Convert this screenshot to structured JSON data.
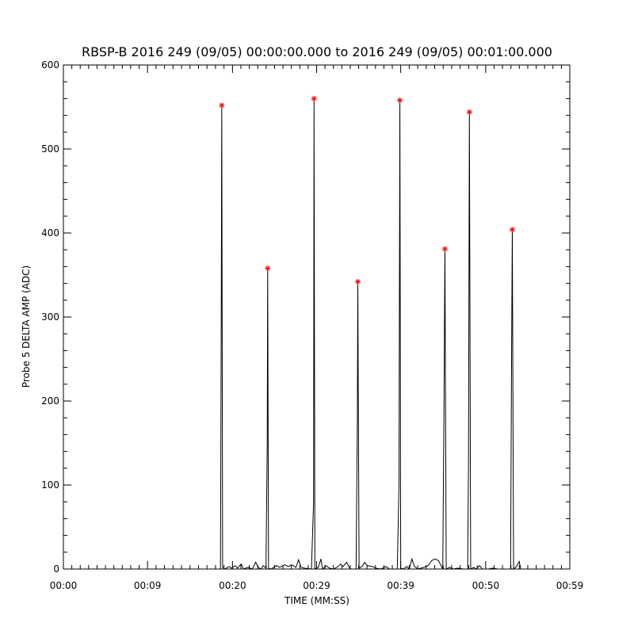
{
  "chart_data": {
    "type": "line",
    "title": "RBSP-B 2016 249 (09/05) 00:00:00.000 to 2016 249 (09/05) 00:01:00.000",
    "xlabel": "TIME (MM:SS)",
    "ylabel": "Probe 5 DELTA AMP (ADC)",
    "xlim": [
      0,
      59
    ],
    "ylim": [
      0,
      600
    ],
    "x_ticks": [
      0,
      9.8,
      19.7,
      29.5,
      39.3,
      49.2,
      59
    ],
    "x_tick_labels": [
      "00:00",
      "00:09",
      "00:20",
      "00:29",
      "00:39",
      "00:50",
      "00:59"
    ],
    "y_ticks": [
      0,
      100,
      200,
      300,
      400,
      500,
      600
    ],
    "y_tick_labels": [
      "0",
      "100",
      "200",
      "300",
      "400",
      "500",
      "600"
    ],
    "series": [
      {
        "color": "#000000",
        "points": [
          [
            0,
            0
          ],
          [
            17.8,
            0
          ],
          [
            18.3,
            0
          ],
          [
            18.4,
            330
          ],
          [
            18.45,
            552
          ],
          [
            18.55,
            2
          ],
          [
            18.8,
            0
          ],
          [
            19.3,
            3
          ],
          [
            19.6,
            1
          ],
          [
            20.0,
            4
          ],
          [
            20.3,
            1
          ],
          [
            20.7,
            6
          ],
          [
            21.0,
            0
          ],
          [
            21.5,
            2
          ],
          [
            22.0,
            0
          ],
          [
            22.4,
            8
          ],
          [
            22.7,
            2
          ],
          [
            23.0,
            0
          ],
          [
            23.3,
            4
          ],
          [
            23.6,
            1
          ],
          [
            23.75,
            150
          ],
          [
            23.8,
            358
          ],
          [
            23.9,
            1
          ],
          [
            24.2,
            0
          ],
          [
            24.8,
            4
          ],
          [
            25.2,
            2
          ],
          [
            25.8,
            5
          ],
          [
            26.2,
            3
          ],
          [
            26.6,
            5
          ],
          [
            27.1,
            2
          ],
          [
            27.4,
            11
          ],
          [
            27.7,
            2
          ],
          [
            28.1,
            1
          ],
          [
            28.9,
            0
          ],
          [
            29.15,
            80
          ],
          [
            29.2,
            560
          ],
          [
            29.3,
            0
          ],
          [
            29.7,
            2
          ],
          [
            30.0,
            12
          ],
          [
            30.2,
            0
          ],
          [
            30.6,
            4
          ],
          [
            31.0,
            1
          ],
          [
            31.5,
            0
          ],
          [
            32.0,
            3
          ],
          [
            32.3,
            6
          ],
          [
            32.6,
            3
          ],
          [
            33.0,
            8
          ],
          [
            33.3,
            2
          ],
          [
            33.5,
            0
          ],
          [
            34.1,
            0
          ],
          [
            34.25,
            180
          ],
          [
            34.3,
            342
          ],
          [
            34.45,
            1
          ],
          [
            34.8,
            3
          ],
          [
            35.1,
            8
          ],
          [
            35.4,
            4
          ],
          [
            36.0,
            3
          ],
          [
            36.4,
            1
          ],
          [
            37.0,
            0
          ],
          [
            37.6,
            3
          ],
          [
            38.0,
            0
          ],
          [
            38.9,
            0
          ],
          [
            39.1,
            100
          ],
          [
            39.2,
            558
          ],
          [
            39.3,
            1
          ],
          [
            39.6,
            0
          ],
          [
            40.0,
            3
          ],
          [
            40.3,
            0
          ],
          [
            40.6,
            12
          ],
          [
            40.9,
            3
          ],
          [
            41.3,
            0
          ],
          [
            42.0,
            2
          ],
          [
            42.5,
            4
          ],
          [
            42.9,
            10
          ],
          [
            43.3,
            12
          ],
          [
            43.7,
            10
          ],
          [
            44.0,
            4
          ],
          [
            44.2,
            0
          ],
          [
            44.35,
            205
          ],
          [
            44.45,
            381
          ],
          [
            44.6,
            0
          ],
          [
            45.0,
            2
          ],
          [
            45.4,
            0
          ],
          [
            46.0,
            1
          ],
          [
            46.6,
            0
          ],
          [
            47.1,
            0
          ],
          [
            47.2,
            130
          ],
          [
            47.3,
            544
          ],
          [
            47.45,
            0
          ],
          [
            47.8,
            2
          ],
          [
            48.1,
            0
          ],
          [
            48.5,
            4
          ],
          [
            48.8,
            0
          ],
          [
            49.5,
            0
          ],
          [
            50.0,
            1
          ],
          [
            50.6,
            0
          ],
          [
            52.1,
            0
          ],
          [
            52.2,
            220
          ],
          [
            52.3,
            404
          ],
          [
            52.45,
            0
          ],
          [
            52.8,
            3
          ],
          [
            53.1,
            9
          ],
          [
            53.3,
            0
          ],
          [
            59,
            0
          ]
        ]
      }
    ],
    "peak_markers": {
      "color": "#ff0000",
      "points": [
        [
          18.45,
          552
        ],
        [
          23.8,
          358
        ],
        [
          29.2,
          560
        ],
        [
          34.3,
          342
        ],
        [
          39.2,
          558
        ],
        [
          44.45,
          381
        ],
        [
          47.3,
          544
        ],
        [
          52.3,
          404
        ]
      ]
    }
  }
}
